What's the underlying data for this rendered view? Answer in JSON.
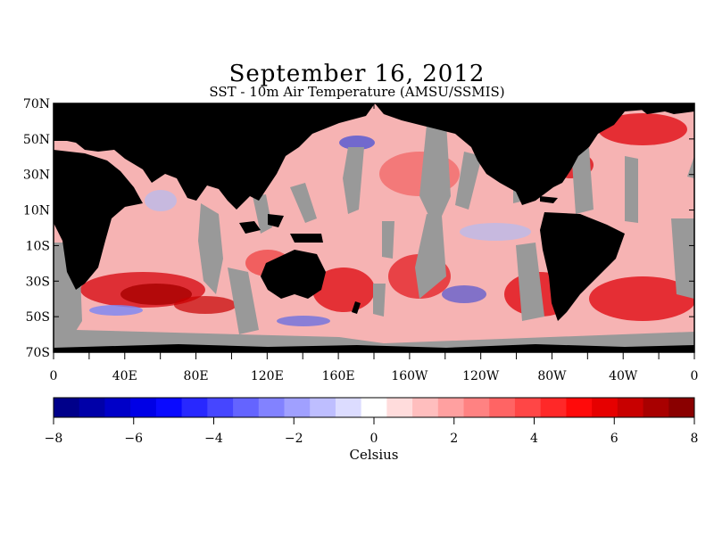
{
  "title": "September 16, 2012",
  "subtitle": "SST - 10m Air Temperature (AMSU/SSMIS)",
  "map": {
    "lat_labels": [
      "70N",
      "50N",
      "30N",
      "10N",
      "10S",
      "30S",
      "50S",
      "70S"
    ],
    "lon_labels": [
      "0",
      "40E",
      "80E",
      "120E",
      "160E",
      "160W",
      "120W",
      "80W",
      "40W",
      "0"
    ],
    "colors": {
      "land": "#000000",
      "no_data": "#999999",
      "warm": "#e0161f",
      "cool": "#3a4fe0"
    }
  },
  "colorbar": {
    "tick_labels": [
      "−8",
      "−6",
      "−4",
      "−2",
      "0",
      "2",
      "4",
      "6",
      "8"
    ],
    "unit_label": "Celsius",
    "colors": [
      "#00008a",
      "#0000a8",
      "#0000c8",
      "#0000e6",
      "#0a0aff",
      "#2828ff",
      "#4646ff",
      "#6464ff",
      "#8282ff",
      "#a0a0ff",
      "#bebeff",
      "#dcdcff",
      "#ffffff",
      "#ffdcdc",
      "#ffbebe",
      "#ffa0a0",
      "#ff8282",
      "#ff6464",
      "#ff4646",
      "#ff2828",
      "#ff0a0a",
      "#e60000",
      "#c80000",
      "#a80000",
      "#8a0000"
    ]
  }
}
